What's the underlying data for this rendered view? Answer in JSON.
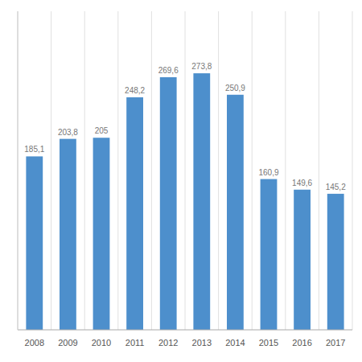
{
  "chart_data": {
    "type": "bar",
    "categories": [
      "2008",
      "2009",
      "2010",
      "2011",
      "2012",
      "2013",
      "2014",
      "2015",
      "2016",
      "2017"
    ],
    "values": [
      185.1,
      203.8,
      205,
      248.2,
      269.6,
      273.8,
      250.9,
      160.9,
      149.6,
      145.2
    ],
    "value_labels": [
      "185,1",
      "203,8",
      "205",
      "248,2",
      "269,6",
      "273,8",
      "250,9",
      "160,9",
      "149,6",
      "145,2"
    ],
    "color": "#4d8fcc",
    "ylim": [
      0,
      340
    ],
    "grid": true,
    "data_labels": true,
    "tick_labels": "x"
  }
}
